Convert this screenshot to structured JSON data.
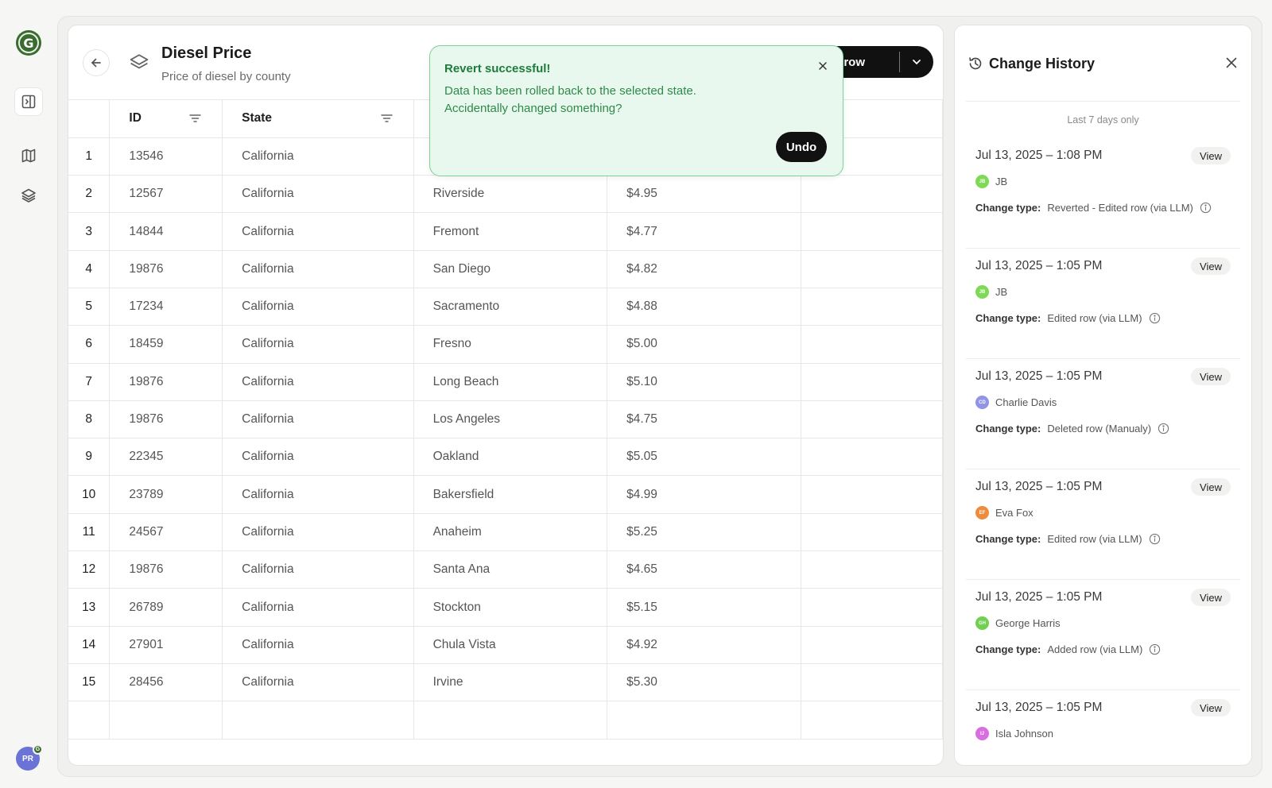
{
  "app": {
    "logo_letter": "G",
    "user_initials": "PR"
  },
  "table": {
    "title": "Diesel Price",
    "subtitle": "Price of diesel by county",
    "add_row_label": "Add row",
    "columns": [
      "ID",
      "State",
      "",
      "",
      ""
    ],
    "rows": [
      {
        "n": "1",
        "id": "13546",
        "state": "California",
        "county": "",
        "price": ""
      },
      {
        "n": "2",
        "id": "12567",
        "state": "California",
        "county": "Riverside",
        "price": "$4.95"
      },
      {
        "n": "3",
        "id": "14844",
        "state": "California",
        "county": "Fremont",
        "price": "$4.77"
      },
      {
        "n": "4",
        "id": "19876",
        "state": "California",
        "county": "San Diego",
        "price": "$4.82"
      },
      {
        "n": "5",
        "id": "17234",
        "state": "California",
        "county": "Sacramento",
        "price": "$4.88"
      },
      {
        "n": "6",
        "id": "18459",
        "state": "California",
        "county": "Fresno",
        "price": "$5.00"
      },
      {
        "n": "7",
        "id": "19876",
        "state": "California",
        "county": "Long Beach",
        "price": "$5.10"
      },
      {
        "n": "8",
        "id": "19876",
        "state": "California",
        "county": "Los Angeles",
        "price": "$4.75"
      },
      {
        "n": "9",
        "id": "22345",
        "state": "California",
        "county": "Oakland",
        "price": "$5.05"
      },
      {
        "n": "10",
        "id": "23789",
        "state": "California",
        "county": "Bakersfield",
        "price": "$4.99"
      },
      {
        "n": "11",
        "id": "24567",
        "state": "California",
        "county": "Anaheim",
        "price": "$5.25"
      },
      {
        "n": "12",
        "id": "19876",
        "state": "California",
        "county": "Santa Ana",
        "price": "$4.65"
      },
      {
        "n": "13",
        "id": "26789",
        "state": "California",
        "county": "Stockton",
        "price": "$5.15"
      },
      {
        "n": "14",
        "id": "27901",
        "state": "California",
        "county": "Chula Vista",
        "price": "$4.92"
      },
      {
        "n": "15",
        "id": "28456",
        "state": "California",
        "county": "Irvine",
        "price": "$5.30"
      }
    ]
  },
  "toast": {
    "title": "Revert successful!",
    "line1": "Data has been rolled back to the selected state.",
    "line2": "Accidentally changed something?",
    "undo_label": "Undo"
  },
  "history": {
    "title": "Change History",
    "note": "Last 7 days only",
    "change_type_label": "Change type:",
    "view_label": "View",
    "entries": [
      {
        "date": "Jul 13, 2025 – 1:08 PM",
        "user": "JB",
        "initials": "JB",
        "color": "#7ed957",
        "type": "Reverted - Edited row (via LLM)"
      },
      {
        "date": "Jul 13, 2025 – 1:05 PM",
        "user": "JB",
        "initials": "JB",
        "color": "#7ed957",
        "type": "Edited row (via LLM)"
      },
      {
        "date": "Jul 13, 2025 – 1:05 PM",
        "user": "Charlie Davis",
        "initials": "CD",
        "color": "#8f94e8",
        "type": "Deleted row (Manualy)"
      },
      {
        "date": "Jul 13, 2025 – 1:05 PM",
        "user": "Eva Fox",
        "initials": "EF",
        "color": "#f08a3c",
        "type": "Edited row (via LLM)"
      },
      {
        "date": "Jul 13, 2025 – 1:05 PM",
        "user": "George Harris",
        "initials": "GH",
        "color": "#6fd14f",
        "type": "Added row (via LLM)"
      },
      {
        "date": "Jul 13, 2025 – 1:05 PM",
        "user": "Isla Johnson",
        "initials": "IJ",
        "color": "#d86ee0",
        "type": ""
      }
    ]
  }
}
